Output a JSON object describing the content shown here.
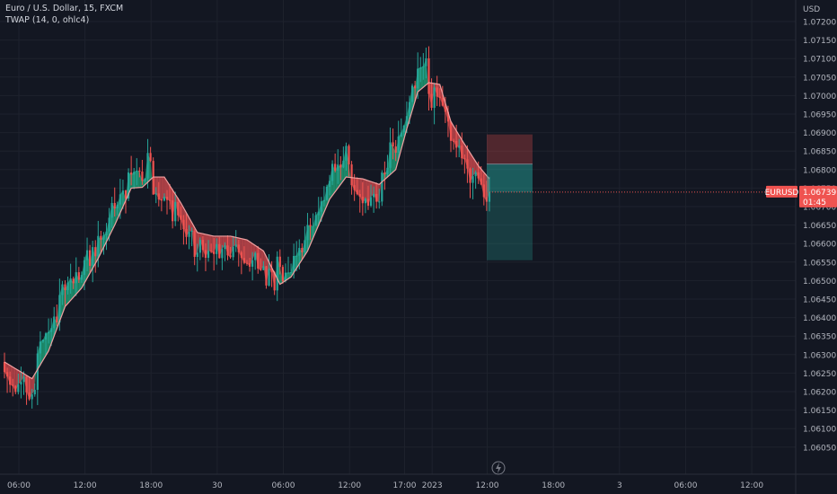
{
  "header": {
    "symbol_line": "Euro / U.S. Dollar, 15, FXCM",
    "indicator_line": "TWAP (14, 0, ohlc4)"
  },
  "price_tag": {
    "symbol": "EURUSD",
    "price": "1.06739",
    "countdown": "01:45",
    "value": 1.06739
  },
  "colors": {
    "background": "#131722",
    "up": "#26a69a",
    "down": "#ef5350",
    "fill_up": "#1f9c74",
    "fill_down": "#c6474b",
    "line": "#f0a0a0"
  },
  "chart_data": {
    "type": "candlestick",
    "currency_label": "USD",
    "y_ticks": [
      "1.06050",
      "1.06100",
      "1.06150",
      "1.06200",
      "1.06250",
      "1.06300",
      "1.06350",
      "1.06400",
      "1.06450",
      "1.06500",
      "1.06550",
      "1.06600",
      "1.06650",
      "1.06700",
      "1.06750",
      "1.06800",
      "1.06850",
      "1.06900",
      "1.06950",
      "1.07000",
      "1.07050",
      "1.07100",
      "1.07150",
      "1.07200"
    ],
    "x_ticks": [
      "06:00",
      "12:00",
      "18:00",
      "30",
      "06:00",
      "12:00",
      "17:00",
      "2023",
      "12:00",
      "18:00",
      "3",
      "06:00",
      "12:00"
    ],
    "x_tick_bar_index": [
      0,
      24,
      48,
      72,
      96,
      120,
      140,
      150,
      170,
      194,
      218,
      242,
      266
    ],
    "ylim": [
      1.06025,
      1.0724
    ],
    "grid": true,
    "series_bar_count": 177,
    "twap_anchors": [
      [
        0,
        1.0628
      ],
      [
        10,
        1.06235
      ],
      [
        16,
        1.0631
      ],
      [
        22,
        1.0643
      ],
      [
        28,
        1.0648
      ],
      [
        34,
        1.0656
      ],
      [
        40,
        1.0665
      ],
      [
        46,
        1.0675
      ],
      [
        50,
        1.06752
      ],
      [
        54,
        1.0678
      ],
      [
        58,
        1.0678
      ],
      [
        64,
        1.0671
      ],
      [
        70,
        1.0663
      ],
      [
        76,
        1.0662
      ],
      [
        82,
        1.0662
      ],
      [
        88,
        1.0661
      ],
      [
        94,
        1.0658
      ],
      [
        100,
        1.0649
      ],
      [
        104,
        1.0651
      ],
      [
        110,
        1.0658
      ],
      [
        118,
        1.0672
      ],
      [
        124,
        1.0678
      ],
      [
        130,
        1.06775
      ],
      [
        136,
        1.0676
      ],
      [
        142,
        1.068
      ],
      [
        146,
        1.0691
      ],
      [
        150,
        1.0701
      ],
      [
        154,
        1.07035
      ],
      [
        158,
        1.0703
      ],
      [
        162,
        1.0693
      ],
      [
        166,
        1.0688
      ],
      [
        172,
        1.0681
      ],
      [
        176,
        1.06775
      ]
    ],
    "dir_segments": [
      [
        0,
        3,
        -1
      ],
      [
        4,
        11,
        -1
      ],
      [
        12,
        37,
        1
      ],
      [
        38,
        53,
        1
      ],
      [
        54,
        60,
        -1
      ],
      [
        61,
        76,
        -1
      ],
      [
        77,
        98,
        -1
      ],
      [
        99,
        125,
        1
      ],
      [
        126,
        136,
        -1
      ],
      [
        137,
        140,
        1
      ],
      [
        141,
        153,
        1
      ],
      [
        154,
        176,
        -1
      ]
    ],
    "position_tool": {
      "entry": 1.06815,
      "stop": 1.06895,
      "target": 1.06555,
      "start_bar": 176,
      "end_bar": 191
    },
    "flash_icon": "lightning-icon"
  }
}
